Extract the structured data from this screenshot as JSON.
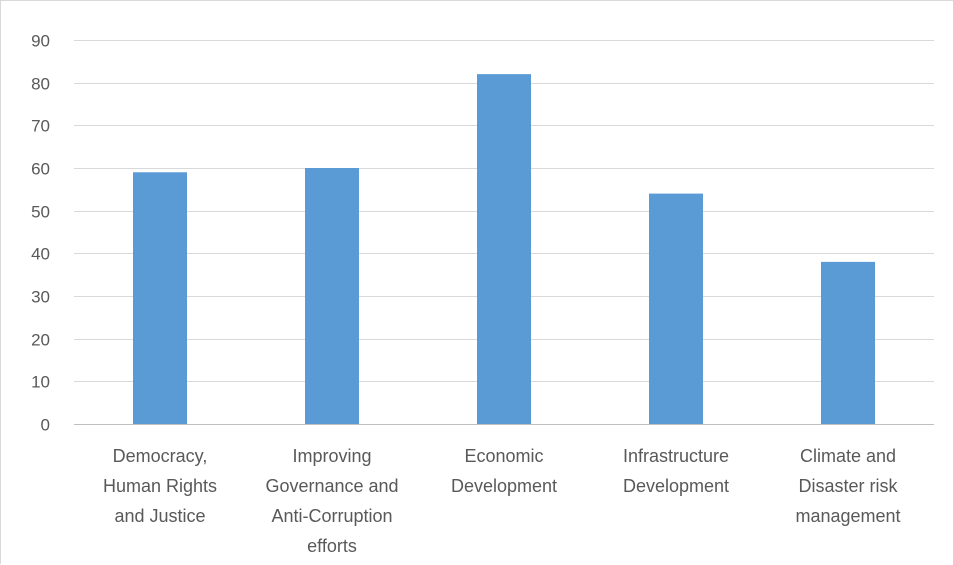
{
  "chart_data": {
    "type": "bar",
    "categories": [
      [
        "Democracy,",
        "Human Rights",
        "and Justice"
      ],
      [
        "Improving",
        "Governance and",
        "Anti-Corruption",
        "efforts"
      ],
      [
        "Economic",
        "Development"
      ],
      [
        "Infrastructure",
        "Development"
      ],
      [
        "Climate and",
        "Disaster risk",
        "management"
      ]
    ],
    "values": [
      59,
      60,
      82,
      54,
      38
    ],
    "ylim": [
      0,
      90
    ],
    "yticks": [
      0,
      10,
      20,
      30,
      40,
      50,
      60,
      70,
      80,
      90
    ],
    "grid": true,
    "legend": "none",
    "bar_color": "#5b9bd5",
    "title": "",
    "xlabel": "",
    "ylabel": ""
  }
}
